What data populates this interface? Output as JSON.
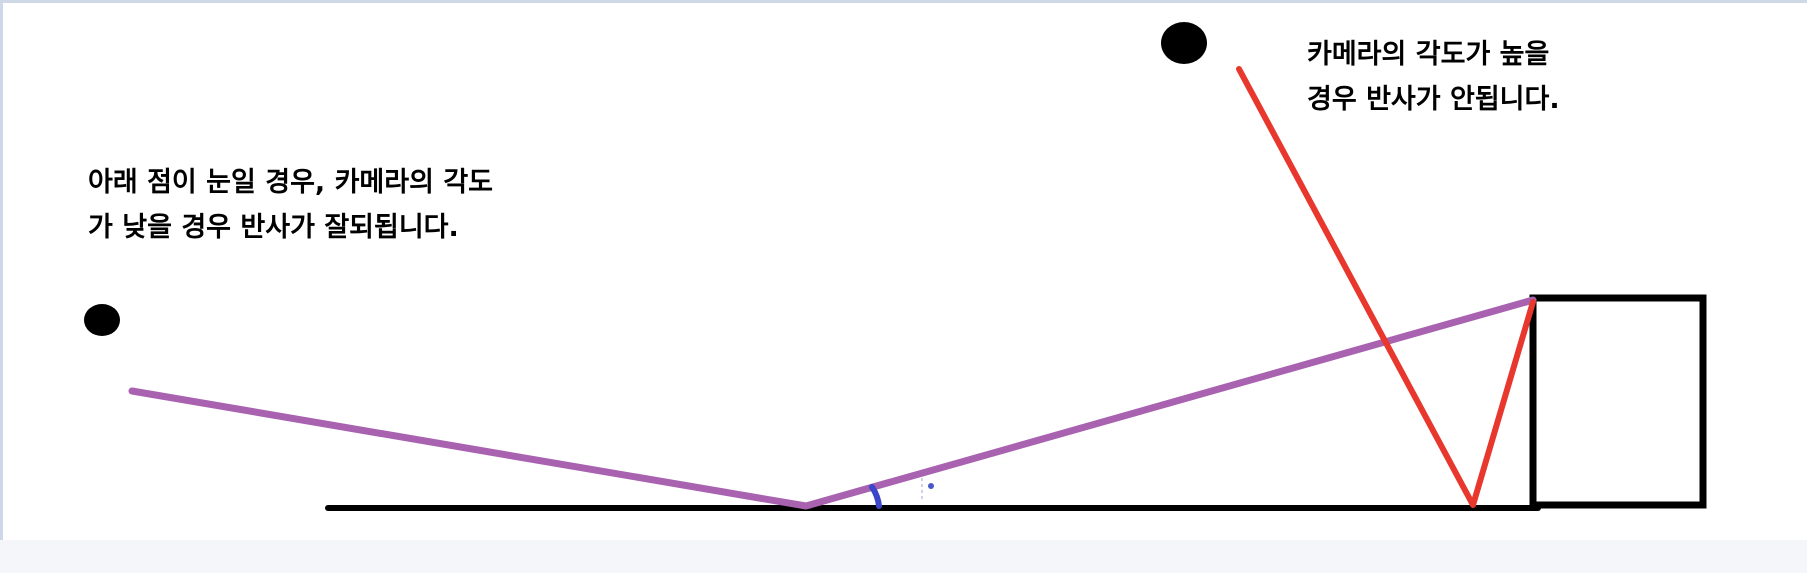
{
  "annotations": {
    "left_note": "아래 점이 눈일 경우, 카메라의 각도\n가 낮을 경우 반사가 잘되됩니다.",
    "right_note": "카메라의 각도가 높을\n경우 반사가 안됩니다."
  },
  "colors": {
    "background": "#ffffff",
    "ground": "#000000",
    "low_angle_ray": "#a862b0",
    "high_angle_ray": "#e8372d",
    "angle_arc": "#3b46c8",
    "eye_dot": "#000000",
    "box": "#000000"
  }
}
